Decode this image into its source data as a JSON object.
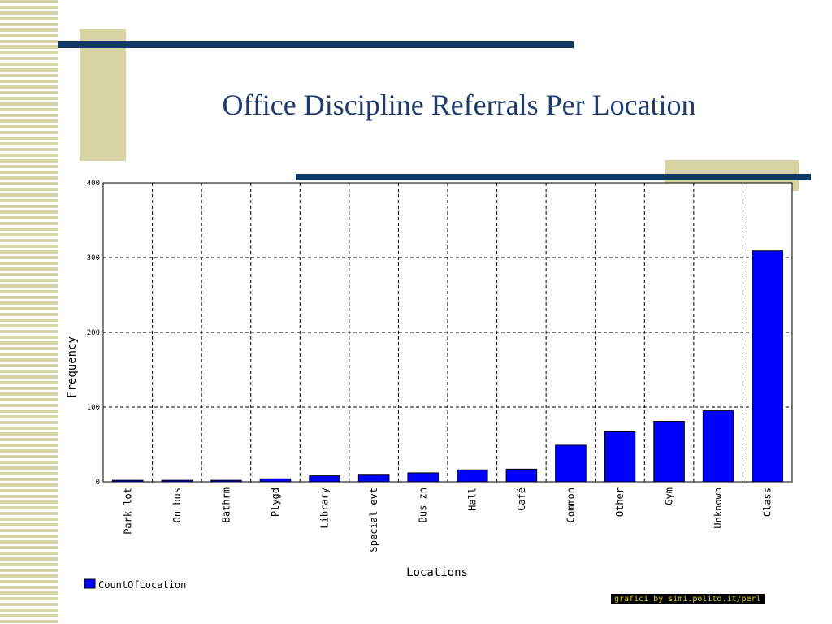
{
  "slide": {
    "title": "Office Discipline Referrals Per Location",
    "credit": "grafici by simi.polito.it/perl"
  },
  "colors": {
    "title": "#1f3b6e",
    "navy_bar": "#0f3a68",
    "khaki": "#d6d3a5",
    "bar_fill": "#0000ff"
  },
  "chart_data": {
    "type": "bar",
    "title": "",
    "xlabel": "Locations",
    "ylabel": "Frequency",
    "ylim": [
      0,
      400
    ],
    "yticks": [
      0,
      100,
      200,
      300,
      400
    ],
    "grid": true,
    "legend_placement": "bottom-left",
    "categories": [
      "Park lot",
      "On bus",
      "Bathrm",
      "Plygd",
      "Library",
      "Special evt",
      "Bus zn",
      "Hall",
      "Café",
      "Common",
      "Other",
      "Gym",
      "Unknown",
      "Class"
    ],
    "series": [
      {
        "name": "CountOfLocation",
        "color": "#0000ff",
        "values": [
          2,
          2,
          2,
          4,
          8,
          9,
          12,
          16,
          17,
          49,
          67,
          81,
          95,
          309
        ]
      }
    ]
  }
}
